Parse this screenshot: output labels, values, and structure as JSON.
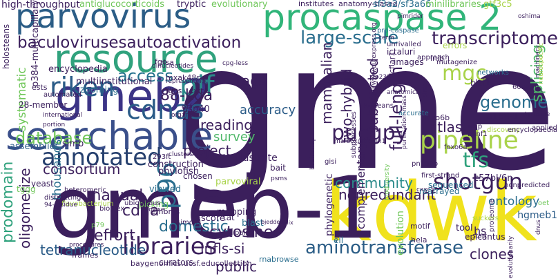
{
  "words": [
    {
      "text": "gme",
      "color": "#3b1f5c"
    },
    {
      "text": "kdwk",
      "color": "#f0e21c"
    },
    {
      "text": "gmeb-1",
      "color": "#3b1f5c"
    },
    {
      "text": "parvovirus",
      "color": "#2b5d86"
    },
    {
      "text": "procaspase 2",
      "color": "#31b57a"
    },
    {
      "text": "searchable",
      "color": "#3a4f8a"
    },
    {
      "text": "resource",
      "color": "#30a27d"
    },
    {
      "text": "gmeb2",
      "color": "#3c3486"
    },
    {
      "text": "annotated",
      "color": "#26406e"
    },
    {
      "text": "libraries",
      "color": "#3b1f5c"
    },
    {
      "text": "pipeline",
      "color": "#a9d34a"
    },
    {
      "text": "pucgpy",
      "color": "#3b1f5c"
    },
    {
      "text": "aminotransferase",
      "color": "#2b5d86"
    },
    {
      "text": "cdnas",
      "color": "#2a5b87"
    },
    {
      "text": "pif",
      "color": "#2a8a8a"
    },
    {
      "text": "riken",
      "color": "#2a5b87"
    },
    {
      "text": "shotgun",
      "color": "#3b1f5c"
    },
    {
      "text": "large-scale",
      "color": "#2a6e8e"
    },
    {
      "text": "transcriptome",
      "color": "#3b1f5c"
    },
    {
      "text": "baculovirusesautoactivation",
      "color": "#3b1f5c"
    },
    {
      "text": "p96",
      "color": "#2a6e8e"
    },
    {
      "text": "database",
      "color": "#70c75a"
    },
    {
      "text": "access",
      "color": "#27728e"
    },
    {
      "text": "accuracy",
      "color": "#2a5b87"
    },
    {
      "text": "88-kda",
      "color": "#3b1f5c"
    },
    {
      "text": "full-length",
      "color": "#3b1f5c"
    },
    {
      "text": "tfs",
      "color": "#30a27d"
    },
    {
      "text": "mgc",
      "color": "#a9d34a"
    },
    {
      "text": "genome",
      "color": "#2a6e8e"
    },
    {
      "text": "splicing",
      "color": "#50b86a"
    },
    {
      "text": "manual",
      "color": "#3b1f5c"
    },
    {
      "text": "cdna",
      "color": "#3b1f5c"
    },
    {
      "text": "domestic",
      "color": "#2a6e8e"
    },
    {
      "text": "prodomain",
      "color": "#30a27d"
    },
    {
      "text": "oligomerize",
      "color": "#3b1f5c"
    },
    {
      "text": "tetranucleotide",
      "color": "#2a5b87"
    },
    {
      "text": "effort",
      "color": "#3b1f5c"
    },
    {
      "text": "cytosine",
      "color": "#3b1f5c"
    },
    {
      "text": "community",
      "color": "#2a8a8a"
    },
    {
      "text": "nonredundant",
      "color": "#3b1f5c"
    },
    {
      "text": "clones",
      "color": "#3b1f5c"
    },
    {
      "text": "tags",
      "color": "#3b1f5c"
    },
    {
      "text": "atlas",
      "color": "#3b1f5c"
    },
    {
      "text": "project",
      "color": "#3b1f5c"
    },
    {
      "text": "consortium",
      "color": "#3b1f5c"
    },
    {
      "text": "survey",
      "color": "#50b86a"
    },
    {
      "text": "reading",
      "color": "#3b1f5c"
    },
    {
      "text": "two-hybrid",
      "color": "#3b1f5c"
    },
    {
      "text": "subtracted",
      "color": "#3b1f5c"
    },
    {
      "text": "mammalian",
      "color": "#3b1f5c"
    },
    {
      "text": "systematic",
      "color": "#70c75a"
    },
    {
      "text": "thousands",
      "color": "#2a6e8e"
    },
    {
      "text": "ontology",
      "color": "#2a6e8e"
    },
    {
      "text": "hgmeb1",
      "color": "#2a5b87"
    },
    {
      "text": "c57bl/6n",
      "color": "#3b1f5c"
    },
    {
      "text": "public",
      "color": "#3b1f5c"
    },
    {
      "text": "infls-si",
      "color": "#3b1f5c"
    },
    {
      "text": "complementary",
      "color": "#3b1f5c"
    },
    {
      "text": "phylogenetic",
      "color": "#3b1f5c"
    },
    {
      "text": "evolution",
      "color": "#70c75a"
    },
    {
      "text": "hs",
      "color": "#3b1f5c"
    },
    {
      "text": "high-throughput",
      "color": "#3b1f5c"
    },
    {
      "text": "antiglucocorticoids",
      "color": "#70c75a"
    },
    {
      "text": "tryptic",
      "color": "#3b1f5c"
    },
    {
      "text": "evolutionary",
      "color": "#70c75a"
    },
    {
      "text": "institutes",
      "color": "#3b1f5c"
    },
    {
      "text": "anatomy-based",
      "color": "#3b1f5c"
    },
    {
      "text": "sf3a2/sf3a66",
      "color": "#2a6e8e"
    },
    {
      "text": "minilibraries",
      "color": "#70c75a"
    },
    {
      "text": "gtf3c5",
      "color": "#a9d34a"
    },
    {
      "text": "holosteans",
      "color": "#3b1f5c"
    },
    {
      "text": "encyclopedia",
      "color": "#3b1f5c"
    },
    {
      "text": "multiinstitutional",
      "color": "#3b1f5c"
    },
    {
      "text": "zooming",
      "color": "#2a6e8e"
    },
    {
      "text": "mxak48r",
      "color": "#3b1f5c"
    },
    {
      "text": "usp40",
      "color": "#3b1f5c"
    },
    {
      "text": "fgos",
      "color": "#3b1f5c"
    },
    {
      "text": "risa",
      "color": "#3b1f5c"
    },
    {
      "text": "a168-170",
      "color": "#3b1f5c"
    },
    {
      "text": "iclip",
      "color": "#3b1f5c"
    },
    {
      "text": "blzf1",
      "color": "#3b1f5c"
    },
    {
      "text": "viewed",
      "color": "#2a6e8e"
    },
    {
      "text": "mapping",
      "color": "#3b1f5c"
    },
    {
      "text": "ascore",
      "color": "#3b1f5c"
    },
    {
      "text": "phylofish",
      "color": "#3b1f5c"
    },
    {
      "text": "picking",
      "color": "#70c75a"
    },
    {
      "text": "yeast",
      "color": "#3b1f5c"
    },
    {
      "text": "tggg",
      "color": "#70c75a"
    },
    {
      "text": "assemblies",
      "color": "#2a5b87"
    },
    {
      "text": "simb",
      "color": "#3b1f5c"
    },
    {
      "text": "construction",
      "color": "#3b1f5c"
    },
    {
      "text": "chosen",
      "color": "#3b1f5c"
    },
    {
      "text": "illustrate",
      "color": "#3b1f5c"
    },
    {
      "text": "bait",
      "color": "#3b1f5c"
    },
    {
      "text": "sequenced",
      "color": "#2a6e8e"
    },
    {
      "text": "parvoviral",
      "color": "#a9d34a"
    },
    {
      "text": "rearrayed",
      "color": "#2a6e8e"
    },
    {
      "text": "foxo6b",
      "color": "#3b1f5c"
    },
    {
      "text": "blast",
      "color": "#2a6e8e"
    },
    {
      "text": "rnabrowse",
      "color": "#2a6e8e"
    },
    {
      "text": "curators",
      "color": "#3b1f5c"
    },
    {
      "text": "baygenomics.ucsf.educollection",
      "color": "#3b1f5c"
    },
    {
      "text": "frames",
      "color": "#3b1f5c"
    },
    {
      "text": "tool",
      "color": "#3b1f5c"
    },
    {
      "text": "epicantus",
      "color": "#3b1f5c"
    },
    {
      "text": "eil",
      "color": "#2a6e8e"
    },
    {
      "text": "tat",
      "color": "#3b1f5c"
    },
    {
      "text": "embrys",
      "color": "#3b1f5c"
    },
    {
      "text": "simons",
      "color": "#3b1f5c"
    },
    {
      "text": "ictaluri",
      "color": "#3b1f5c"
    },
    {
      "text": "images",
      "color": "#3b1f5c"
    },
    {
      "text": "inib",
      "color": "#3b1f5c"
    },
    {
      "text": "errors",
      "color": "#a9d34a"
    },
    {
      "text": "cerm",
      "color": "#3b1f5c"
    },
    {
      "text": "unrivalled",
      "color": "#3b1f5c"
    },
    {
      "text": "pro-caspase",
      "color": "#2a6e8e"
    },
    {
      "text": "fgo",
      "color": "#3b1f5c"
    },
    {
      "text": "cflar1",
      "color": "#3b1f5c"
    },
    {
      "text": "polling",
      "color": "#2a6e8e"
    },
    {
      "text": "accurate",
      "color": "#2a6e8e"
    },
    {
      "text": "networks",
      "color": "#2a6e8e"
    },
    {
      "text": "situ",
      "color": "#3b1f5c"
    },
    {
      "text": "approach",
      "color": "#3b1f5c"
    },
    {
      "text": "anatomical",
      "color": "#3b1f5c"
    },
    {
      "text": "k-means",
      "color": "#3b1f5c"
    },
    {
      "text": "mafbox/atrogin1",
      "color": "#3b1f5c"
    },
    {
      "text": "bjeddeb",
      "color": "#3b1f5c"
    },
    {
      "text": "fflix",
      "color": "#3b1f5c"
    },
    {
      "text": "banf1",
      "color": "#3b1f5c"
    },
    {
      "text": "discovery",
      "color": "#a9d34a"
    },
    {
      "text": "encyclopaedia",
      "color": "#3b1f5c"
    },
    {
      "text": "applied",
      "color": "#3b1f5c"
    },
    {
      "text": "tyrosine",
      "color": "#3b1f5c"
    },
    {
      "text": "nonpredicted",
      "color": "#3b1f5c"
    },
    {
      "text": "oet",
      "color": "#70c75a"
    },
    {
      "text": "first-strand",
      "color": "#3b1f5c"
    },
    {
      "text": "biodiversity",
      "color": "#70c75a"
    },
    {
      "text": "dnus",
      "color": "#3b1f5c"
    },
    {
      "text": "proteome",
      "color": "#3b1f5c"
    },
    {
      "text": "start",
      "color": "#3b1f5c"
    },
    {
      "text": "hela",
      "color": "#3b1f5c"
    },
    {
      "text": "motif",
      "color": "#3b1f5c"
    },
    {
      "text": "gisi",
      "color": "#3b1f5c"
    },
    {
      "text": "pairs",
      "color": "#3b1f5c"
    },
    {
      "text": "ubiquitous",
      "color": "#3b1f5c"
    },
    {
      "text": "procedures",
      "color": "#3b1f5c"
    },
    {
      "text": "browse",
      "color": "#3b1f5c"
    },
    {
      "text": "bioplex",
      "color": "#3b1f5c"
    },
    {
      "text": "flavobacterium",
      "color": "#a9d34a"
    },
    {
      "text": "heteromeric",
      "color": "#3b1f5c"
    },
    {
      "text": "distracting",
      "color": "#3b1f5c"
    },
    {
      "text": "94-residue",
      "color": "#3b1f5c"
    },
    {
      "text": "p79",
      "color": "#70c75a"
    },
    {
      "text": "293ft",
      "color": "#3b1f5c"
    },
    {
      "text": "clusters",
      "color": "#3b1f5c"
    },
    {
      "text": "international",
      "color": "#3b1f5c"
    },
    {
      "text": "organism",
      "color": "#3b1f5c"
    },
    {
      "text": "portion",
      "color": "#3b1f5c"
    },
    {
      "text": "automated",
      "color": "#3b1f5c"
    },
    {
      "text": "28-member",
      "color": "#3b1f5c"
    },
    {
      "text": "ests",
      "color": "#3b1f5c"
    },
    {
      "text": "p384-multicapillary",
      "color": "#3b1f5c"
    },
    {
      "text": "dinucleotides",
      "color": "#3b1f5c"
    },
    {
      "text": "representing",
      "color": "#3b1f5c"
    },
    {
      "text": "zfp238",
      "color": "#3b1f5c"
    },
    {
      "text": "sima",
      "color": "#3b1f5c"
    },
    {
      "text": "60mum",
      "color": "#3b1f5c"
    },
    {
      "text": "machinery",
      "color": "#3b1f5c"
    },
    {
      "text": "oshima",
      "color": "#3b1f5c"
    },
    {
      "text": "mutagenize",
      "color": "#3b1f5c"
    },
    {
      "text": "pimrider",
      "color": "#3b1f5c"
    },
    {
      "text": "subprocesses",
      "color": "#3b1f5c"
    },
    {
      "text": "cxxc4",
      "color": "#3b1f5c"
    },
    {
      "text": "foxo6a",
      "color": "#3b1f5c"
    },
    {
      "text": "pn100b",
      "color": "#3b1f5c"
    },
    {
      "text": "cpg-less",
      "color": "#3b1f5c"
    },
    {
      "text": "cxxc5",
      "color": "#3b1f5c"
    },
    {
      "text": "evolutionarily",
      "color": "#3b1f5c"
    },
    {
      "text": "suckers",
      "color": "#a9d34a"
    },
    {
      "text": "brainmap",
      "color": "#3b1f5c"
    },
    {
      "text": "psms",
      "color": "#3b1f5c"
    },
    {
      "text": "http://www.eurexpress.org",
      "color": "#3b1f5c"
    },
    {
      "text": "purification-mass",
      "color": "#3b1f5c"
    },
    {
      "text": "neurospecific",
      "color": "#a9d34a"
    },
    {
      "text": "orf",
      "color": "#3b1f5c"
    }
  ]
}
